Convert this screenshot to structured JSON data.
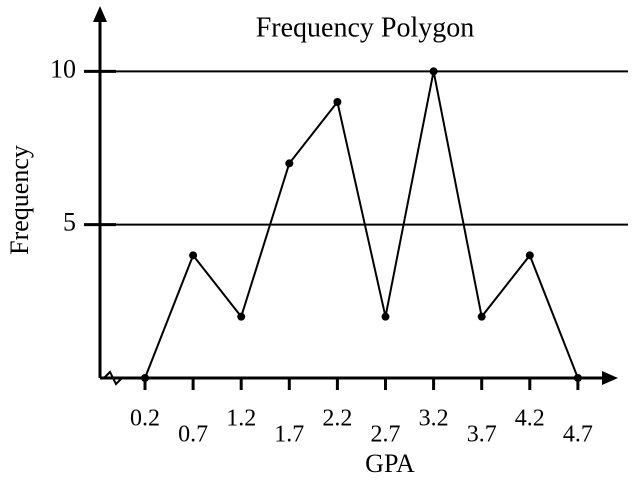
{
  "chart_data": {
    "type": "line",
    "title": "Frequency Polygon",
    "x_label": "GPA",
    "y_label": "Frequency",
    "categories": [
      "0.2",
      "0.7",
      "1.2",
      "1.7",
      "2.2",
      "2.7",
      "3.2",
      "3.7",
      "4.2",
      "4.7"
    ],
    "values": [
      0,
      4,
      2,
      7,
      9,
      2,
      10,
      2,
      4,
      0
    ],
    "color": "#000000",
    "ylim": [
      0,
      12
    ],
    "yticks": [
      5,
      10
    ],
    "grid": true
  }
}
